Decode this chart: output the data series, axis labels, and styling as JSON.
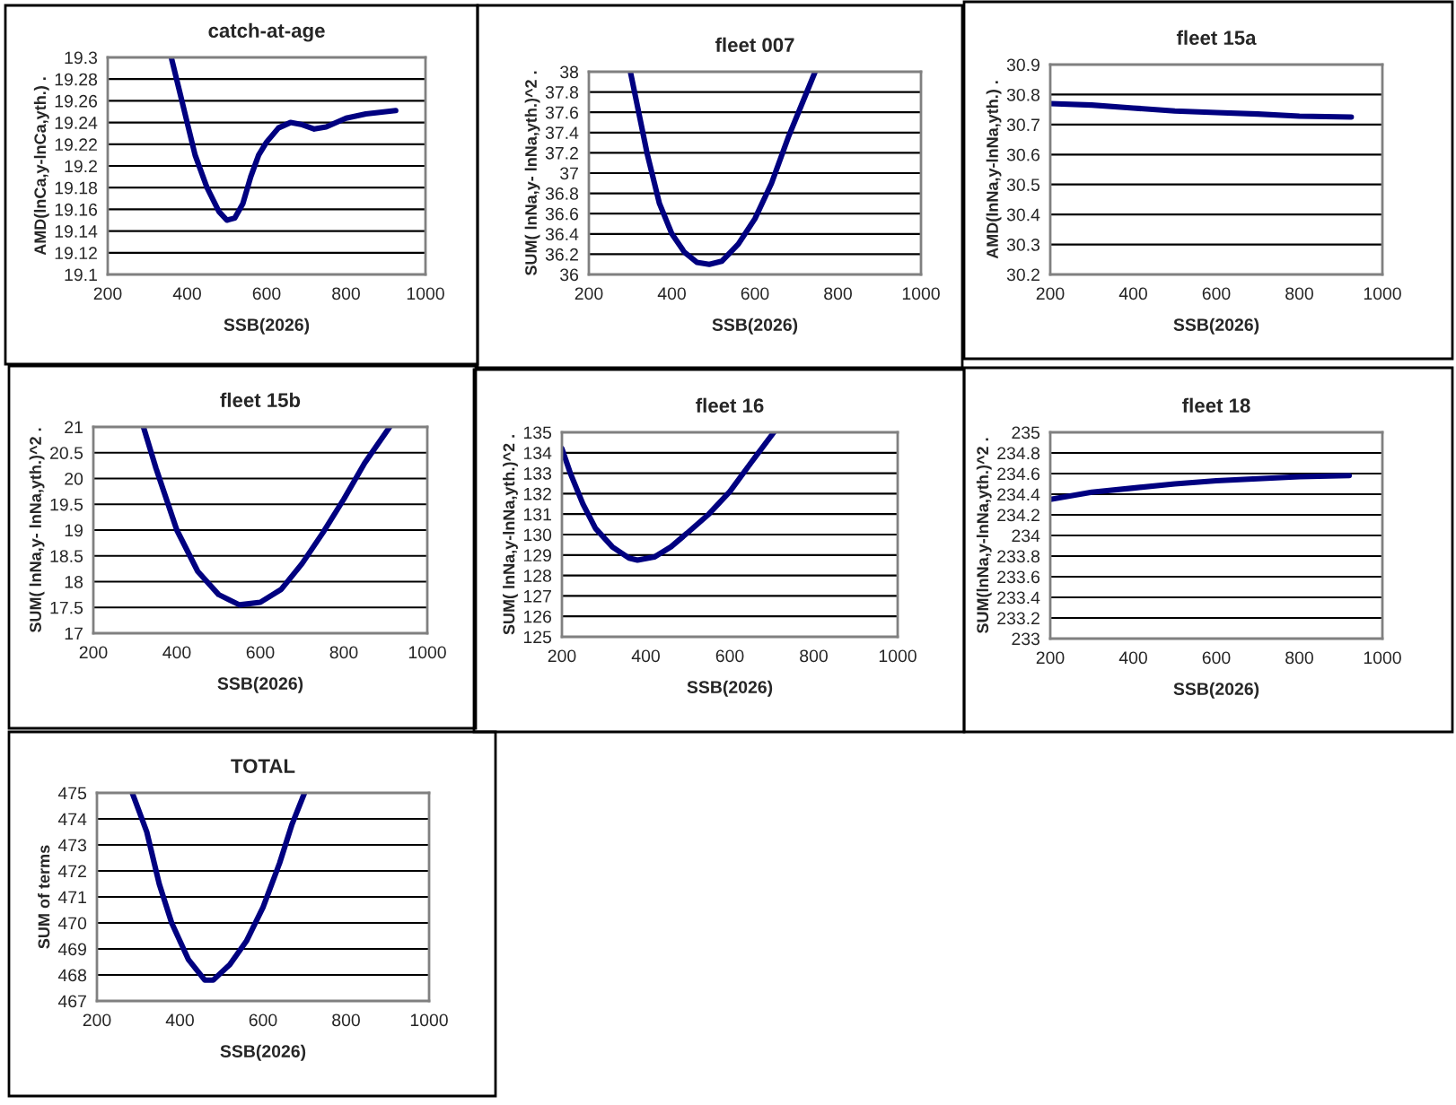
{
  "chart_data": [
    {
      "type": "line",
      "title": "catch-at-age",
      "xlabel": "SSB(2026)",
      "ylabel": "AMD(lnCa,y-lnCa,yth.) .",
      "xlim": [
        200,
        1000
      ],
      "xticks": [
        200,
        400,
        600,
        800,
        1000
      ],
      "ylim": [
        19.1,
        19.3
      ],
      "yticks": [
        19.1,
        19.12,
        19.14,
        19.16,
        19.18,
        19.2,
        19.22,
        19.24,
        19.26,
        19.28,
        19.3
      ],
      "grid": "y",
      "legend": false,
      "marker": "none",
      "line_style": "solid",
      "series": [
        {
          "color": "#000080",
          "x": [
            360,
            380,
            400,
            420,
            450,
            480,
            500,
            520,
            540,
            560,
            580,
            600,
            630,
            660,
            690,
            720,
            750,
            800,
            850,
            925
          ],
          "values": [
            19.3,
            19.27,
            19.24,
            19.21,
            19.18,
            19.158,
            19.15,
            19.152,
            19.165,
            19.19,
            19.21,
            19.222,
            19.235,
            19.24,
            19.238,
            19.234,
            19.236,
            19.244,
            19.248,
            19.251
          ]
        }
      ]
    },
    {
      "type": "line",
      "title": "fleet 007",
      "xlabel": "SSB(2026)",
      "ylabel": "SUM( lnNa,y- lnNa,yth.)^2 .",
      "xlim": [
        200,
        1000
      ],
      "xticks": [
        200,
        400,
        600,
        800,
        1000
      ],
      "ylim": [
        36,
        38
      ],
      "yticks": [
        36,
        36.2,
        36.4,
        36.6,
        36.8,
        37,
        37.2,
        37.4,
        37.6,
        37.8,
        38
      ],
      "grid": "y",
      "legend": false,
      "marker": "none",
      "line_style": "solid",
      "series": [
        {
          "color": "#000080",
          "x": [
            300,
            340,
            370,
            400,
            430,
            460,
            490,
            520,
            560,
            600,
            640,
            680,
            720,
            745
          ],
          "values": [
            38,
            37.2,
            36.7,
            36.4,
            36.22,
            36.12,
            36.1,
            36.13,
            36.3,
            36.55,
            36.9,
            37.35,
            37.75,
            38
          ]
        }
      ]
    },
    {
      "type": "line",
      "title": "fleet 15a",
      "xlabel": "SSB(2026)",
      "ylabel": "AMD(lnNa,y-lnNa,yth.) .",
      "xlim": [
        200,
        1000
      ],
      "xticks": [
        200,
        400,
        600,
        800,
        1000
      ],
      "ylim": [
        30.2,
        30.9
      ],
      "yticks": [
        30.2,
        30.3,
        30.4,
        30.5,
        30.6,
        30.7,
        30.8,
        30.9
      ],
      "grid": "y",
      "legend": false,
      "marker": "none",
      "line_style": "solid",
      "series": [
        {
          "color": "#000080",
          "x": [
            200,
            300,
            400,
            500,
            600,
            700,
            800,
            925
          ],
          "values": [
            30.77,
            30.765,
            30.755,
            30.745,
            30.74,
            30.735,
            30.728,
            30.725
          ]
        }
      ]
    },
    {
      "type": "line",
      "title": "fleet 15b",
      "xlabel": "SSB(2026)",
      "ylabel": "SUM( lnNa,y- lnNa,yth.)^2 .",
      "xlim": [
        200,
        1000
      ],
      "xticks": [
        200,
        400,
        600,
        800,
        1000
      ],
      "ylim": [
        17,
        21
      ],
      "yticks": [
        17,
        17.5,
        18,
        18.5,
        19,
        19.5,
        20,
        20.5,
        21
      ],
      "grid": "y",
      "legend": false,
      "marker": "none",
      "line_style": "solid",
      "series": [
        {
          "color": "#000080",
          "x": [
            320,
            350,
            400,
            450,
            500,
            550,
            600,
            650,
            700,
            750,
            800,
            850,
            910
          ],
          "values": [
            21,
            20.2,
            19.0,
            18.2,
            17.75,
            17.55,
            17.6,
            17.85,
            18.35,
            18.95,
            19.6,
            20.3,
            21
          ]
        }
      ]
    },
    {
      "type": "line",
      "title": "fleet 16",
      "xlabel": "SSB(2026)",
      "ylabel": "SUM( lnNa,y-lnNa,yth.)^2 .",
      "xlim": [
        200,
        1000
      ],
      "xticks": [
        200,
        400,
        600,
        800,
        1000
      ],
      "ylim": [
        125,
        135
      ],
      "yticks": [
        125,
        126,
        127,
        128,
        129,
        130,
        131,
        132,
        133,
        134,
        135
      ],
      "grid": "y",
      "legend": false,
      "marker": "none",
      "line_style": "solid",
      "series": [
        {
          "color": "#000080",
          "x": [
            200,
            220,
            250,
            280,
            320,
            360,
            380,
            420,
            460,
            500,
            550,
            600,
            650,
            705
          ],
          "values": [
            134.2,
            133,
            131.5,
            130.3,
            129.4,
            128.85,
            128.75,
            128.9,
            129.4,
            130.1,
            131,
            132.1,
            133.5,
            135
          ]
        }
      ]
    },
    {
      "type": "line",
      "title": "fleet 18",
      "xlabel": "SSB(2026)",
      "ylabel": "SUM(lnNa,y-lnNa,yth.)^2 .",
      "xlim": [
        200,
        1000
      ],
      "xticks": [
        200,
        400,
        600,
        800,
        1000
      ],
      "ylim": [
        233,
        235
      ],
      "yticks": [
        233,
        233.2,
        233.4,
        233.6,
        233.8,
        234,
        234.2,
        234.4,
        234.6,
        234.8,
        235
      ],
      "grid": "y",
      "legend": false,
      "marker": "none",
      "line_style": "solid",
      "series": [
        {
          "color": "#000080",
          "x": [
            200,
            300,
            400,
            500,
            600,
            700,
            800,
            920
          ],
          "values": [
            234.35,
            234.42,
            234.46,
            234.5,
            234.53,
            234.55,
            234.57,
            234.58
          ]
        }
      ]
    },
    {
      "type": "line",
      "title": "TOTAL",
      "xlabel": "SSB(2026)",
      "ylabel": "SUM of terms",
      "xlim": [
        200,
        1000
      ],
      "xticks": [
        200,
        400,
        600,
        800,
        1000
      ],
      "ylim": [
        467,
        475
      ],
      "yticks": [
        467,
        468,
        469,
        470,
        471,
        472,
        473,
        474,
        475
      ],
      "grid": "y",
      "legend": false,
      "marker": "none",
      "line_style": "solid",
      "series": [
        {
          "color": "#000080",
          "x": [
            285,
            320,
            350,
            380,
            420,
            460,
            480,
            520,
            560,
            600,
            640,
            670,
            700
          ],
          "values": [
            475,
            473.5,
            471.5,
            470,
            468.6,
            467.8,
            467.8,
            468.4,
            469.3,
            470.6,
            472.3,
            473.8,
            475
          ]
        }
      ]
    }
  ]
}
